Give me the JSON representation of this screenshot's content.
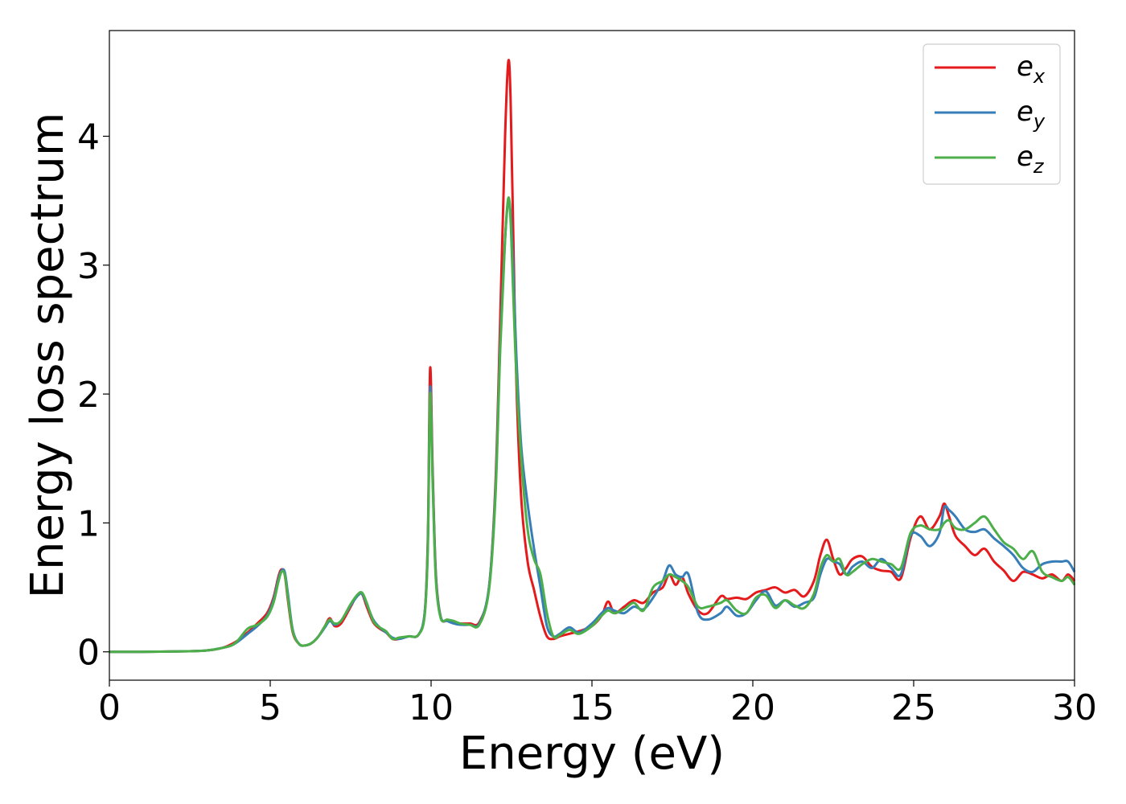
{
  "chart_data": {
    "type": "line",
    "title": "",
    "xlabel": "Energy (eV)",
    "ylabel": "Energy loss spectrum",
    "xlim": [
      0,
      30
    ],
    "ylim": [
      -0.22,
      4.82
    ],
    "xticks": [
      0,
      5,
      10,
      15,
      20,
      25,
      30
    ],
    "yticks": [
      0,
      1,
      2,
      3,
      4
    ],
    "grid": false,
    "legend_position": "top-right",
    "series": [
      {
        "name": "e_x",
        "legend_base": "e",
        "legend_sub": "x",
        "color": "#e41a1c",
        "x": [
          0,
          1,
          2,
          3,
          3.5,
          3.8,
          4.0,
          4.3,
          4.6,
          4.9,
          5.1,
          5.25,
          5.35,
          5.45,
          5.55,
          5.7,
          5.9,
          6.1,
          6.3,
          6.5,
          6.7,
          6.85,
          7.0,
          7.2,
          7.5,
          7.7,
          7.85,
          8.0,
          8.2,
          8.4,
          8.6,
          8.8,
          9.0,
          9.3,
          9.6,
          9.8,
          9.9,
          9.97,
          10.05,
          10.15,
          10.3,
          10.5,
          10.7,
          10.9,
          11.2,
          11.5,
          11.8,
          12.0,
          12.15,
          12.3,
          12.4,
          12.47,
          12.55,
          12.65,
          12.8,
          13.0,
          13.2,
          13.4,
          13.6,
          13.8,
          14.0,
          14.3,
          14.6,
          15.0,
          15.3,
          15.5,
          15.7,
          16.0,
          16.3,
          16.6,
          16.9,
          17.2,
          17.4,
          17.6,
          17.8,
          18.0,
          18.3,
          18.6,
          19.0,
          19.2,
          19.5,
          19.8,
          20.1,
          20.4,
          20.7,
          21.0,
          21.3,
          21.6,
          21.9,
          22.1,
          22.3,
          22.5,
          22.7,
          22.9,
          23.1,
          23.4,
          23.7,
          24.0,
          24.3,
          24.6,
          24.9,
          25.2,
          25.5,
          25.8,
          25.95,
          26.1,
          26.3,
          26.6,
          26.9,
          27.2,
          27.5,
          27.8,
          28.1,
          28.4,
          28.7,
          29.0,
          29.3,
          29.6,
          29.8,
          30.0
        ],
        "values": [
          0,
          0,
          0.003,
          0.01,
          0.03,
          0.06,
          0.09,
          0.15,
          0.22,
          0.3,
          0.42,
          0.58,
          0.64,
          0.6,
          0.4,
          0.15,
          0.06,
          0.05,
          0.07,
          0.12,
          0.2,
          0.26,
          0.2,
          0.22,
          0.35,
          0.44,
          0.45,
          0.35,
          0.23,
          0.18,
          0.15,
          0.1,
          0.1,
          0.12,
          0.13,
          0.3,
          0.9,
          2.2,
          1.4,
          0.6,
          0.27,
          0.24,
          0.23,
          0.22,
          0.22,
          0.23,
          0.5,
          1.3,
          2.6,
          4.0,
          4.58,
          4.3,
          3.3,
          2.1,
          1.2,
          0.7,
          0.48,
          0.27,
          0.12,
          0.1,
          0.12,
          0.14,
          0.16,
          0.2,
          0.28,
          0.39,
          0.3,
          0.35,
          0.4,
          0.38,
          0.46,
          0.5,
          0.6,
          0.52,
          0.58,
          0.45,
          0.32,
          0.3,
          0.43,
          0.41,
          0.42,
          0.41,
          0.46,
          0.48,
          0.5,
          0.46,
          0.48,
          0.43,
          0.55,
          0.75,
          0.87,
          0.72,
          0.6,
          0.65,
          0.72,
          0.74,
          0.66,
          0.63,
          0.62,
          0.57,
          0.88,
          1.05,
          0.95,
          1.05,
          1.15,
          1.05,
          0.9,
          0.82,
          0.75,
          0.8,
          0.7,
          0.63,
          0.55,
          0.62,
          0.6,
          0.57,
          0.6,
          0.55,
          0.6,
          0.55
        ]
      },
      {
        "name": "e_y",
        "legend_base": "e",
        "legend_sub": "y",
        "color": "#377eb8",
        "x": [
          0,
          1,
          2,
          3,
          3.5,
          3.8,
          4.0,
          4.3,
          4.6,
          4.9,
          5.1,
          5.25,
          5.35,
          5.45,
          5.55,
          5.7,
          5.9,
          6.1,
          6.3,
          6.5,
          6.7,
          6.85,
          7.0,
          7.2,
          7.5,
          7.7,
          7.85,
          8.0,
          8.2,
          8.4,
          8.6,
          8.8,
          9.0,
          9.3,
          9.6,
          9.8,
          9.9,
          9.97,
          10.05,
          10.15,
          10.3,
          10.5,
          10.7,
          10.9,
          11.2,
          11.5,
          11.8,
          12.0,
          12.15,
          12.3,
          12.4,
          12.47,
          12.55,
          12.65,
          12.8,
          13.0,
          13.2,
          13.4,
          13.6,
          13.8,
          14.0,
          14.3,
          14.6,
          15.0,
          15.3,
          15.5,
          15.7,
          16.0,
          16.3,
          16.6,
          16.9,
          17.2,
          17.4,
          17.6,
          17.8,
          18.0,
          18.3,
          18.6,
          19.0,
          19.2,
          19.5,
          19.8,
          20.1,
          20.4,
          20.7,
          21.0,
          21.3,
          21.6,
          21.9,
          22.1,
          22.3,
          22.5,
          22.7,
          22.9,
          23.1,
          23.4,
          23.7,
          24.0,
          24.3,
          24.6,
          24.9,
          25.2,
          25.5,
          25.8,
          25.95,
          26.1,
          26.3,
          26.6,
          26.9,
          27.2,
          27.5,
          27.8,
          28.1,
          28.4,
          28.7,
          29.0,
          29.3,
          29.6,
          29.8,
          30.0
        ],
        "values": [
          0,
          0,
          0.003,
          0.01,
          0.03,
          0.05,
          0.08,
          0.14,
          0.2,
          0.28,
          0.4,
          0.56,
          0.63,
          0.62,
          0.45,
          0.17,
          0.06,
          0.05,
          0.07,
          0.12,
          0.19,
          0.24,
          0.21,
          0.24,
          0.36,
          0.43,
          0.45,
          0.37,
          0.25,
          0.19,
          0.15,
          0.11,
          0.1,
          0.12,
          0.13,
          0.3,
          0.85,
          2.05,
          1.35,
          0.58,
          0.27,
          0.24,
          0.22,
          0.21,
          0.21,
          0.22,
          0.5,
          1.25,
          2.4,
          3.2,
          3.5,
          3.4,
          3.0,
          2.3,
          1.6,
          1.15,
          0.8,
          0.5,
          0.2,
          0.12,
          0.14,
          0.19,
          0.15,
          0.22,
          0.3,
          0.34,
          0.32,
          0.3,
          0.35,
          0.33,
          0.42,
          0.55,
          0.67,
          0.6,
          0.58,
          0.6,
          0.3,
          0.25,
          0.3,
          0.35,
          0.28,
          0.3,
          0.4,
          0.47,
          0.36,
          0.4,
          0.35,
          0.38,
          0.42,
          0.6,
          0.72,
          0.7,
          0.68,
          0.6,
          0.66,
          0.7,
          0.65,
          0.72,
          0.65,
          0.6,
          0.9,
          0.9,
          0.82,
          0.92,
          1.12,
          1.1,
          1.05,
          0.95,
          0.93,
          0.95,
          0.88,
          0.82,
          0.75,
          0.65,
          0.62,
          0.68,
          0.7,
          0.7,
          0.7,
          0.62
        ]
      },
      {
        "name": "e_z",
        "legend_base": "e",
        "legend_sub": "z",
        "color": "#4daf4a",
        "x": [
          0,
          1,
          2,
          3,
          3.5,
          3.8,
          4.0,
          4.3,
          4.6,
          4.9,
          5.1,
          5.25,
          5.35,
          5.45,
          5.55,
          5.7,
          5.9,
          6.1,
          6.3,
          6.5,
          6.7,
          6.85,
          7.0,
          7.2,
          7.5,
          7.7,
          7.85,
          8.0,
          8.2,
          8.4,
          8.6,
          8.8,
          9.0,
          9.3,
          9.6,
          9.8,
          9.9,
          9.97,
          10.05,
          10.15,
          10.3,
          10.5,
          10.7,
          10.9,
          11.2,
          11.5,
          11.8,
          12.0,
          12.15,
          12.3,
          12.4,
          12.47,
          12.55,
          12.65,
          12.8,
          13.0,
          13.2,
          13.4,
          13.6,
          13.8,
          14.0,
          14.3,
          14.6,
          15.0,
          15.3,
          15.5,
          15.7,
          16.0,
          16.3,
          16.6,
          16.9,
          17.2,
          17.4,
          17.6,
          17.8,
          18.0,
          18.3,
          18.6,
          19.0,
          19.2,
          19.5,
          19.8,
          20.1,
          20.4,
          20.7,
          21.0,
          21.3,
          21.6,
          21.9,
          22.1,
          22.3,
          22.5,
          22.7,
          22.9,
          23.1,
          23.4,
          23.7,
          24.0,
          24.3,
          24.6,
          24.9,
          25.2,
          25.5,
          25.8,
          25.95,
          26.1,
          26.3,
          26.6,
          26.9,
          27.2,
          27.5,
          27.8,
          28.1,
          28.4,
          28.7,
          29.0,
          29.3,
          29.6,
          29.8,
          30.0
        ],
        "values": [
          0,
          0,
          0.003,
          0.01,
          0.03,
          0.05,
          0.09,
          0.18,
          0.21,
          0.27,
          0.38,
          0.54,
          0.62,
          0.6,
          0.42,
          0.16,
          0.06,
          0.05,
          0.07,
          0.12,
          0.2,
          0.25,
          0.22,
          0.24,
          0.37,
          0.44,
          0.46,
          0.38,
          0.24,
          0.19,
          0.16,
          0.1,
          0.11,
          0.12,
          0.13,
          0.28,
          0.82,
          2.0,
          1.3,
          0.55,
          0.26,
          0.25,
          0.24,
          0.22,
          0.21,
          0.21,
          0.48,
          1.2,
          2.35,
          3.2,
          3.52,
          3.35,
          2.8,
          2.15,
          1.5,
          0.95,
          0.72,
          0.6,
          0.3,
          0.12,
          0.13,
          0.17,
          0.14,
          0.2,
          0.28,
          0.32,
          0.3,
          0.33,
          0.38,
          0.32,
          0.5,
          0.55,
          0.6,
          0.58,
          0.55,
          0.5,
          0.35,
          0.35,
          0.38,
          0.4,
          0.32,
          0.3,
          0.42,
          0.44,
          0.34,
          0.4,
          0.36,
          0.34,
          0.45,
          0.65,
          0.75,
          0.7,
          0.72,
          0.6,
          0.62,
          0.68,
          0.72,
          0.7,
          0.68,
          0.65,
          0.92,
          0.98,
          0.95,
          0.95,
          1.0,
          1.02,
          0.96,
          0.95,
          1.0,
          1.05,
          0.95,
          0.85,
          0.8,
          0.72,
          0.78,
          0.62,
          0.58,
          0.55,
          0.58,
          0.52
        ]
      }
    ]
  }
}
